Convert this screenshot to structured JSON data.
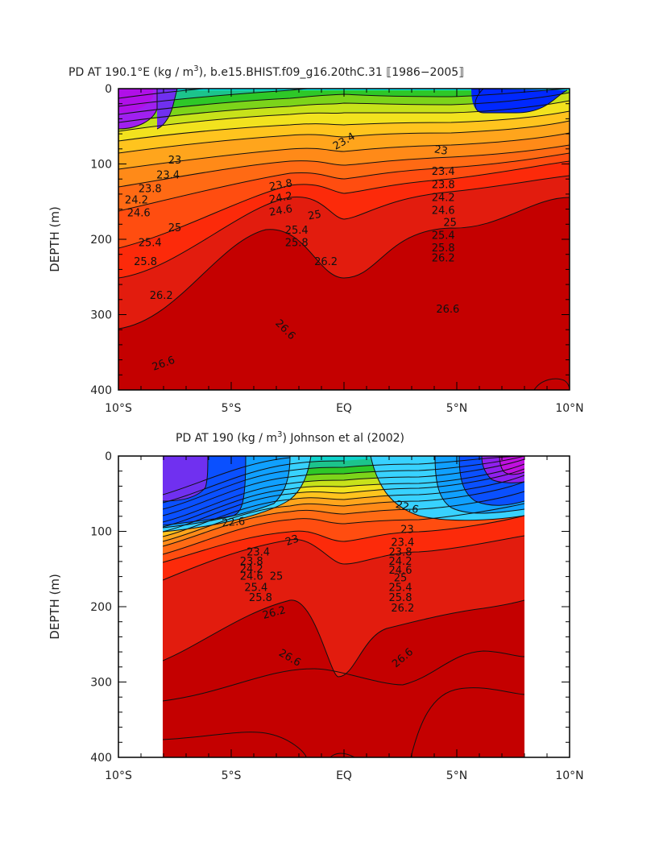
{
  "chart_data": [
    {
      "type": "contour",
      "title": "PD AT 190.1°E (kg / m³), b.e15.BHIST.f09_g16.20thC.31 [1986-2005]",
      "title_parts": {
        "prefix": "PD AT 190.1°E (kg / m",
        "superscript": "3",
        "suffix": "), b.e15.BHIST.f09_g16.20thC.31 ⟦1986−2005⟧"
      },
      "xlabel": "",
      "ylabel": "DEPTH (m)",
      "xlim": [
        -10,
        10
      ],
      "ylim": [
        400,
        0
      ],
      "x_ticks": [
        {
          "v": -10,
          "label": "10°S"
        },
        {
          "v": -5,
          "label": "5°S"
        },
        {
          "v": 0,
          "label": "EQ"
        },
        {
          "v": 5,
          "label": "5°N"
        },
        {
          "v": 10,
          "label": "10°N"
        }
      ],
      "y_ticks": [
        {
          "v": 0,
          "label": "0"
        },
        {
          "v": 100,
          "label": "100"
        },
        {
          "v": 200,
          "label": "200"
        },
        {
          "v": 300,
          "label": "300"
        },
        {
          "v": 400,
          "label": "400"
        }
      ],
      "data_extent_x": [
        -10,
        10
      ],
      "contour_interval": 0.2,
      "contour_labels": [
        {
          "x": 0.0,
          "y": 70,
          "text": "23.4",
          "angle": -30
        },
        {
          "x": 4.3,
          "y": 82,
          "text": "23",
          "angle": 10
        },
        {
          "x": -7.5,
          "y": 95,
          "text": "23"
        },
        {
          "x": -7.8,
          "y": 115,
          "text": "23.4"
        },
        {
          "x": 4.4,
          "y": 110,
          "text": "23.4"
        },
        {
          "x": -8.6,
          "y": 133,
          "text": "23.8"
        },
        {
          "x": -2.8,
          "y": 128,
          "text": "23.8",
          "angle": -10
        },
        {
          "x": 4.4,
          "y": 128,
          "text": "23.8"
        },
        {
          "x": -9.2,
          "y": 148,
          "text": "24.2"
        },
        {
          "x": -2.8,
          "y": 145,
          "text": "24.2",
          "angle": -10
        },
        {
          "x": 4.4,
          "y": 145,
          "text": "24.2"
        },
        {
          "x": -9.1,
          "y": 165,
          "text": "24.6"
        },
        {
          "x": -2.8,
          "y": 162,
          "text": "24.6",
          "angle": -10
        },
        {
          "x": 4.4,
          "y": 162,
          "text": "24.6"
        },
        {
          "x": -7.5,
          "y": 185,
          "text": "25"
        },
        {
          "x": -1.3,
          "y": 168,
          "text": "25",
          "angle": -10
        },
        {
          "x": 4.7,
          "y": 178,
          "text": "25"
        },
        {
          "x": -8.6,
          "y": 205,
          "text": "25.4"
        },
        {
          "x": -2.1,
          "y": 188,
          "text": "25.4"
        },
        {
          "x": 4.4,
          "y": 195,
          "text": "25.4"
        },
        {
          "x": -8.8,
          "y": 230,
          "text": "25.8"
        },
        {
          "x": -2.1,
          "y": 205,
          "text": "25.8"
        },
        {
          "x": 4.4,
          "y": 212,
          "text": "25.8"
        },
        {
          "x": -0.8,
          "y": 230,
          "text": "26.2"
        },
        {
          "x": 4.4,
          "y": 225,
          "text": "26.2"
        },
        {
          "x": -8.1,
          "y": 275,
          "text": "26.2"
        },
        {
          "x": 4.6,
          "y": 293,
          "text": "26.6"
        },
        {
          "x": -2.6,
          "y": 320,
          "text": "26.6",
          "angle": 45
        },
        {
          "x": -8.0,
          "y": 365,
          "text": "26.6",
          "angle": -20
        }
      ]
    },
    {
      "type": "contour",
      "title": "PD AT 190 (kg / m³) Johnson et al (2002)",
      "title_parts": {
        "prefix": "PD AT 190 (kg / m",
        "superscript": "3",
        "suffix": ") Johnson et al (2002)"
      },
      "xlabel": "",
      "ylabel": "DEPTH (m)",
      "xlim": [
        -10,
        10
      ],
      "ylim": [
        400,
        0
      ],
      "x_ticks": [
        {
          "v": -10,
          "label": "10°S"
        },
        {
          "v": -5,
          "label": "5°S"
        },
        {
          "v": 0,
          "label": "EQ"
        },
        {
          "v": 5,
          "label": "5°N"
        },
        {
          "v": 10,
          "label": "10°N"
        }
      ],
      "y_ticks": [
        {
          "v": 0,
          "label": "0"
        },
        {
          "v": 100,
          "label": "100"
        },
        {
          "v": 200,
          "label": "200"
        },
        {
          "v": 300,
          "label": "300"
        },
        {
          "v": 400,
          "label": "400"
        }
      ],
      "data_extent_x": [
        -8,
        8
      ],
      "contour_interval": 0.2,
      "contour_labels": [
        {
          "x": -4.9,
          "y": 88,
          "text": "22.6",
          "angle": -5
        },
        {
          "x": 2.8,
          "y": 68,
          "text": "22.6",
          "angle": 15
        },
        {
          "x": -2.3,
          "y": 112,
          "text": "23",
          "angle": -20
        },
        {
          "x": 2.8,
          "y": 98,
          "text": "23"
        },
        {
          "x": -3.8,
          "y": 128,
          "text": "23.4"
        },
        {
          "x": 2.6,
          "y": 115,
          "text": "23.4"
        },
        {
          "x": -4.1,
          "y": 140,
          "text": "23.8"
        },
        {
          "x": 2.5,
          "y": 128,
          "text": "23.8"
        },
        {
          "x": -4.1,
          "y": 150,
          "text": "24.2"
        },
        {
          "x": 2.5,
          "y": 140,
          "text": "24.2"
        },
        {
          "x": -4.1,
          "y": 160,
          "text": "24.6"
        },
        {
          "x": 2.5,
          "y": 152,
          "text": "24.6"
        },
        {
          "x": -3.0,
          "y": 160,
          "text": "25"
        },
        {
          "x": 2.5,
          "y": 162,
          "text": "25"
        },
        {
          "x": -3.9,
          "y": 175,
          "text": "25.4"
        },
        {
          "x": 2.5,
          "y": 175,
          "text": "25.4"
        },
        {
          "x": -3.7,
          "y": 188,
          "text": "25.8"
        },
        {
          "x": 2.5,
          "y": 188,
          "text": "25.8"
        },
        {
          "x": -3.1,
          "y": 208,
          "text": "26.2",
          "angle": -15
        },
        {
          "x": 2.6,
          "y": 202,
          "text": "26.2"
        },
        {
          "x": -2.4,
          "y": 268,
          "text": "26.6",
          "angle": 30
        },
        {
          "x": 2.6,
          "y": 268,
          "text": "26.6",
          "angle": -40
        }
      ]
    }
  ]
}
